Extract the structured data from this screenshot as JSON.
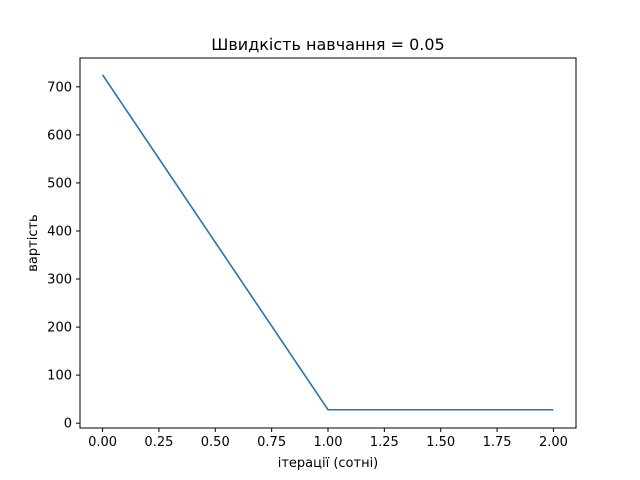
{
  "chart_data": {
    "type": "line",
    "title": "Швидкість навчання = 0.05",
    "xlabel": "ітерації (сотні)",
    "ylabel": "вартість",
    "xlim": [
      -0.1,
      2.1
    ],
    "ylim": [
      -10,
      760
    ],
    "x_ticks": [
      0.0,
      0.25,
      0.5,
      0.75,
      1.0,
      1.25,
      1.5,
      1.75,
      2.0
    ],
    "x_tick_labels": [
      "0.00",
      "0.25",
      "0.50",
      "0.75",
      "1.00",
      "1.25",
      "1.50",
      "1.75",
      "2.00"
    ],
    "y_ticks": [
      0,
      100,
      200,
      300,
      400,
      500,
      600,
      700
    ],
    "y_tick_labels": [
      "0",
      "100",
      "200",
      "300",
      "400",
      "500",
      "600",
      "700"
    ],
    "grid": false,
    "series": [
      {
        "color": "#1f77b4",
        "x": [
          0,
          1,
          2
        ],
        "y": [
          725,
          28,
          28
        ]
      }
    ]
  }
}
